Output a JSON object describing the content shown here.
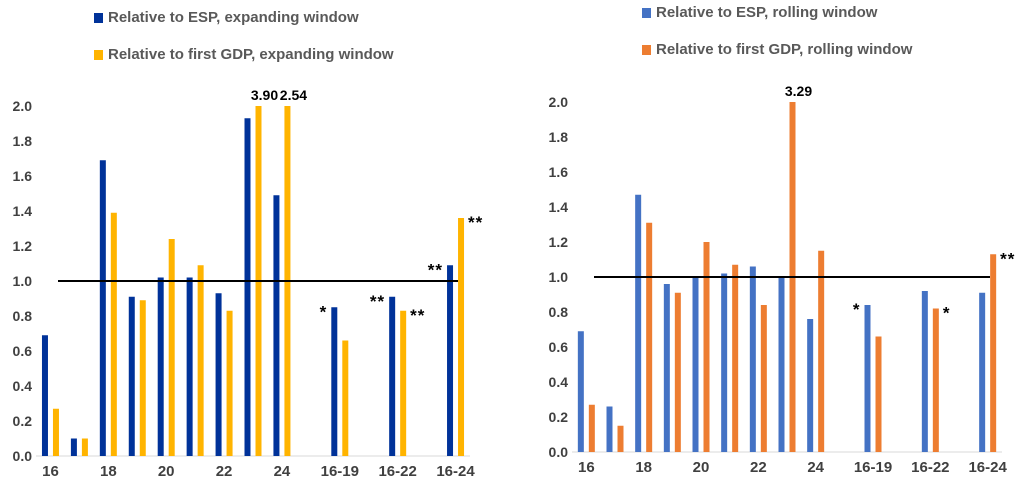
{
  "chart_data": [
    {
      "type": "bar",
      "categories": [
        "16",
        "17",
        "18",
        "19",
        "20",
        "21",
        "22",
        "23",
        "24",
        "",
        "16-19",
        "",
        "16-22",
        "",
        "16-24"
      ],
      "x_tick_labels": [
        "16",
        "18",
        "20",
        "22",
        "24",
        "16-19",
        "16-22",
        "16-24"
      ],
      "ylim": [
        0,
        2.0
      ],
      "yticks": [
        "0.0",
        "0.2",
        "0.4",
        "0.6",
        "0.8",
        "1.0",
        "1.2",
        "1.4",
        "1.6",
        "1.8",
        "2.0"
      ],
      "reference_line": 1.0,
      "legend_position": "top-left",
      "series": [
        {
          "name": "Relative to ESP, expanding window",
          "color": "#003299",
          "values": [
            0.69,
            0.1,
            1.69,
            0.91,
            1.02,
            1.02,
            0.93,
            1.93,
            1.49,
            null,
            0.85,
            null,
            0.91,
            null,
            1.09
          ],
          "value_labels": [
            "",
            "",
            "",
            "",
            "",
            "",
            "",
            "",
            "",
            "",
            "",
            "",
            "",
            "",
            ""
          ],
          "significance": [
            "",
            "",
            "",
            "",
            "",
            "",
            "",
            "",
            "",
            "",
            "*",
            "",
            "**",
            "",
            "**"
          ]
        },
        {
          "name": "Relative to first GDP, expanding window",
          "color": "#FFB400",
          "values": [
            0.27,
            0.1,
            1.39,
            0.89,
            1.24,
            1.09,
            0.83,
            3.9,
            2.54,
            null,
            0.66,
            null,
            0.83,
            null,
            1.36
          ],
          "value_labels": [
            "",
            "",
            "",
            "",
            "",
            "",
            "",
            "3.90",
            "2.54",
            "",
            "",
            "",
            "",
            "",
            ""
          ],
          "significance": [
            "",
            "",
            "",
            "",
            "",
            "",
            "",
            "",
            "",
            "",
            "",
            "",
            "**",
            "",
            "**"
          ]
        }
      ]
    },
    {
      "type": "bar",
      "categories": [
        "16",
        "17",
        "18",
        "19",
        "20",
        "21",
        "22",
        "23",
        "24",
        "",
        "16-19",
        "",
        "16-22",
        "",
        "16-24"
      ],
      "x_tick_labels": [
        "16",
        "18",
        "20",
        "22",
        "24",
        "16-19",
        "16-22",
        "16-24"
      ],
      "ylim": [
        0,
        2.0
      ],
      "yticks": [
        "0.0",
        "0.2",
        "0.4",
        "0.6",
        "0.8",
        "1.0",
        "1.2",
        "1.4",
        "1.6",
        "1.8",
        "2.0"
      ],
      "reference_line": 1.0,
      "legend_position": "top-left",
      "series": [
        {
          "name": "Relative to ESP, rolling window",
          "color": "#4472C4",
          "values": [
            0.69,
            0.26,
            1.47,
            0.96,
            1.0,
            1.02,
            1.06,
            1.0,
            0.76,
            null,
            0.84,
            null,
            0.92,
            null,
            0.91
          ],
          "value_labels": [
            "",
            "",
            "",
            "",
            "",
            "",
            "",
            "",
            "",
            "",
            "",
            "",
            "",
            "",
            ""
          ],
          "significance": [
            "",
            "",
            "",
            "",
            "",
            "",
            "",
            "",
            "",
            "",
            "*",
            "",
            "",
            "",
            ""
          ]
        },
        {
          "name": "Relative to first GDP, rolling window",
          "color": "#ED7D31",
          "values": [
            0.27,
            0.15,
            1.31,
            0.91,
            1.2,
            1.07,
            0.84,
            3.29,
            1.15,
            null,
            0.66,
            null,
            0.82,
            null,
            1.13
          ],
          "value_labels": [
            "",
            "",
            "",
            "",
            "",
            "",
            "",
            "3.29",
            "",
            "",
            "",
            "",
            "",
            "",
            ""
          ],
          "significance": [
            "",
            "",
            "",
            "",
            "",
            "",
            "",
            "",
            "",
            "",
            "",
            "",
            "*",
            "",
            "**"
          ]
        }
      ]
    }
  ]
}
